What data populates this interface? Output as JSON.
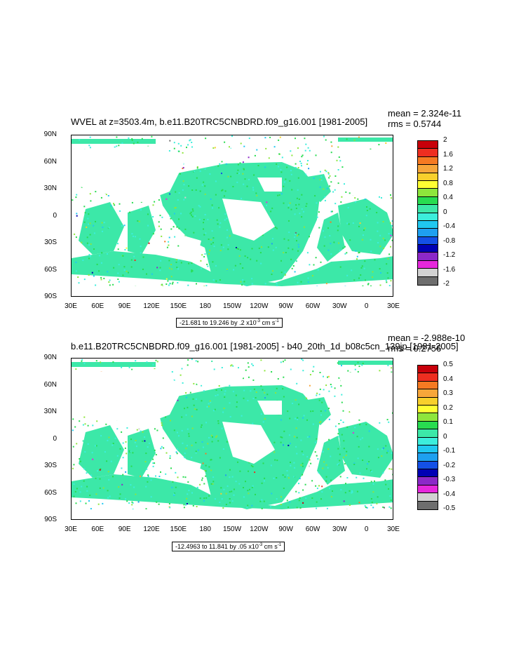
{
  "panels": [
    {
      "title": "WVEL at z=3503.4m, b.e11.B20TRC5CNBDRD.f09_g16.001 [1981-2005]",
      "mean": "mean = 2.324e-11",
      "rms": "rms = 0.5744",
      "range_text": "-21.681 to 19.246 by .2 x10",
      "range_exp": "-3",
      "range_units": " cm s",
      "range_units_exp": "-1",
      "colorbar_labels": [
        "2",
        "1.6",
        "1.2",
        "0.8",
        "0.4",
        "0",
        "-0.4",
        "-0.8",
        "-1.2",
        "-1.6",
        "-2"
      ]
    },
    {
      "title": "b.e11.B20TRC5CNBDRD.f09_g16.001 [1981-2005] - b40_20th_1d_b08c5cn_139jp [1981-2005]",
      "mean": "mean = -2.988e-10",
      "rms": "rms = 0.2756",
      "range_text": "-12.4963 to 11.841 by .05 x10",
      "range_exp": "-3",
      "range_units": " cm s",
      "range_units_exp": "-1",
      "colorbar_labels": [
        "0.5",
        "0.4",
        "0.3",
        "0.2",
        "0.1",
        "0",
        "-0.1",
        "-0.2",
        "-0.3",
        "-0.4",
        "-0.5"
      ]
    }
  ],
  "lat_labels": [
    "90N",
    "60N",
    "30N",
    "0",
    "30S",
    "60S",
    "90S"
  ],
  "lon_labels": [
    "30E",
    "60E",
    "90E",
    "120E",
    "150E",
    "180",
    "150W",
    "120W",
    "90W",
    "60W",
    "30W",
    "0",
    "30E"
  ],
  "colorbar_colors": [
    "#c8000a",
    "#ee2e20",
    "#f57a22",
    "#f7a63a",
    "#f8d02c",
    "#ffff33",
    "#8ee63c",
    "#28dc50",
    "#3ce8a8",
    "#3ceedc",
    "#20c8f0",
    "#1ea0f0",
    "#1450e6",
    "#0000b4",
    "#8c28c8",
    "#e628dc",
    "#d2d2d2",
    "#6e6e6e"
  ],
  "land_color": "#ffffff",
  "ocean_main_color": "#3ce8a8"
}
